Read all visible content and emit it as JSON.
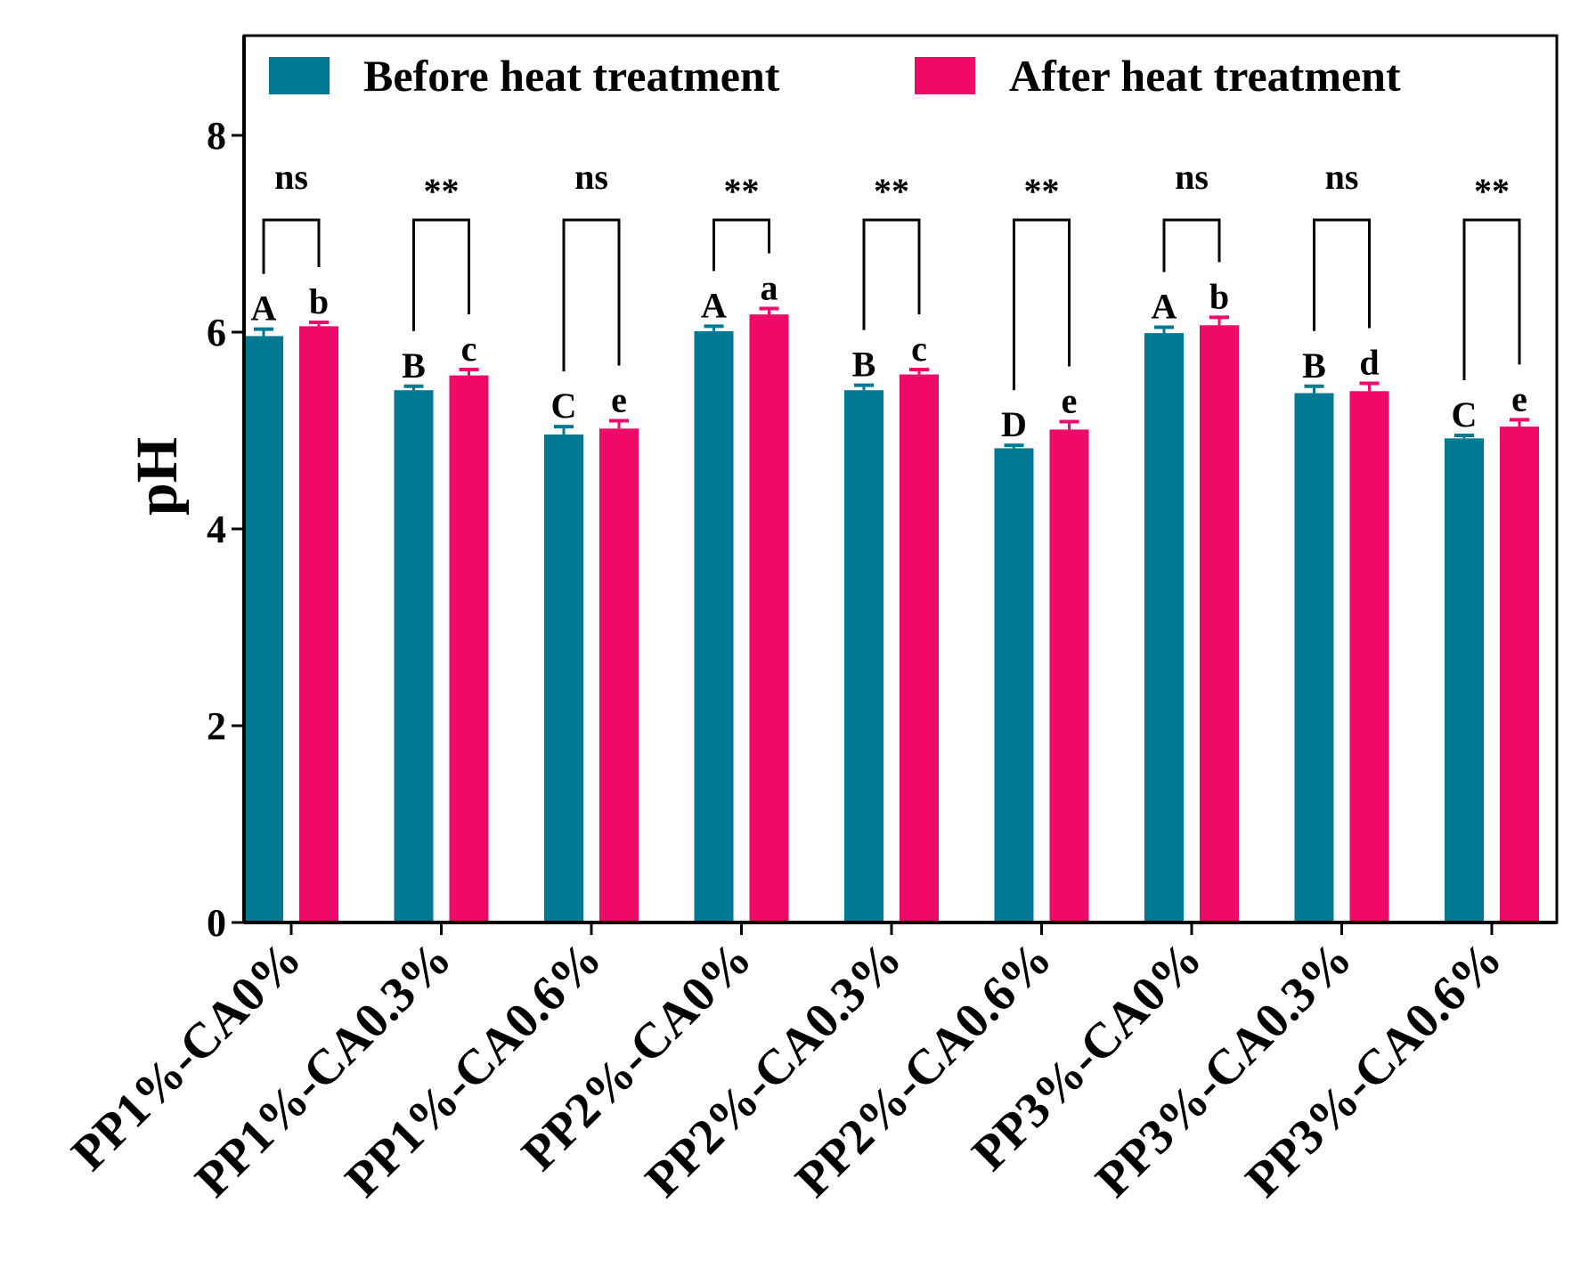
{
  "chart_data": {
    "type": "bar",
    "title": "",
    "xlabel": "",
    "ylabel": "pH",
    "ylim": [
      0,
      9
    ],
    "yticks": [
      0,
      2,
      4,
      6,
      8
    ],
    "categories": [
      "PP1%-CA0%",
      "PP1%-CA0.3%",
      "PP1%-CA0.6%",
      "PP2%-CA0%",
      "PP2%-CA0.3%",
      "PP2%-CA0.6%",
      "PP3%-CA0%",
      "PP3%-CA0.3%",
      "PP3%-CA0.6%"
    ],
    "series": [
      {
        "name": "Before heat treatment",
        "color": "#007A94",
        "values": [
          5.96,
          5.41,
          4.96,
          6.01,
          5.41,
          4.82,
          5.99,
          5.38,
          4.92
        ],
        "errors": [
          0.07,
          0.04,
          0.08,
          0.05,
          0.05,
          0.03,
          0.06,
          0.07,
          0.03
        ],
        "letters": [
          "A",
          "B",
          "C",
          "A",
          "B",
          "D",
          "A",
          "B",
          "C"
        ]
      },
      {
        "name": "After heat treatment",
        "color": "#EF0A6A",
        "values": [
          6.06,
          5.56,
          5.02,
          6.18,
          5.57,
          5.01,
          6.07,
          5.4,
          5.04
        ],
        "errors": [
          0.04,
          0.06,
          0.08,
          0.06,
          0.05,
          0.08,
          0.08,
          0.08,
          0.07
        ],
        "letters": [
          "b",
          "c",
          "e",
          "a",
          "c",
          "e",
          "b",
          "d",
          "e"
        ]
      }
    ],
    "significance": [
      "ns",
      "**",
      "ns",
      "**",
      "**",
      "**",
      "ns",
      "ns",
      "**"
    ],
    "legend_position": "top"
  }
}
